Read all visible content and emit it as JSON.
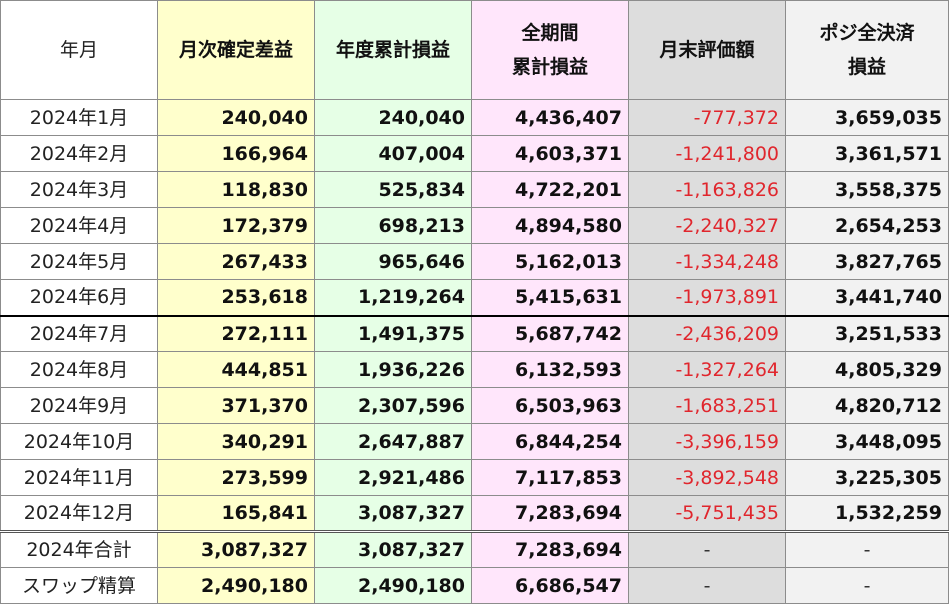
{
  "headers": {
    "month": "年月",
    "monthly_confirmed": "月次確定差益",
    "annual_cumulative": "年度累計損益",
    "period_cumulative_line1": "全期間",
    "period_cumulative_line2": "累計損益",
    "month_end_valuation": "月末評価額",
    "net_if_closed_line1": "ポジ全決済",
    "net_if_closed_line2": "損益"
  },
  "rows": [
    {
      "month": "2024年1月",
      "monthly": "240,040",
      "annual": "240,040",
      "total": "4,436,407",
      "valuation": "-777,372",
      "net": "3,659,035"
    },
    {
      "month": "2024年2月",
      "monthly": "166,964",
      "annual": "407,004",
      "total": "4,603,371",
      "valuation": "-1,241,800",
      "net": "3,361,571"
    },
    {
      "month": "2024年3月",
      "monthly": "118,830",
      "annual": "525,834",
      "total": "4,722,201",
      "valuation": "-1,163,826",
      "net": "3,558,375"
    },
    {
      "month": "2024年4月",
      "monthly": "172,379",
      "annual": "698,213",
      "total": "4,894,580",
      "valuation": "-2,240,327",
      "net": "2,654,253"
    },
    {
      "month": "2024年5月",
      "monthly": "267,433",
      "annual": "965,646",
      "total": "5,162,013",
      "valuation": "-1,334,248",
      "net": "3,827,765"
    },
    {
      "month": "2024年6月",
      "monthly": "253,618",
      "annual": "1,219,264",
      "total": "5,415,631",
      "valuation": "-1,973,891",
      "net": "3,441,740"
    },
    {
      "month": "2024年7月",
      "monthly": "272,111",
      "annual": "1,491,375",
      "total": "5,687,742",
      "valuation": "-2,436,209",
      "net": "3,251,533"
    },
    {
      "month": "2024年8月",
      "monthly": "444,851",
      "annual": "1,936,226",
      "total": "6,132,593",
      "valuation": "-1,327,264",
      "net": "4,805,329"
    },
    {
      "month": "2024年9月",
      "monthly": "371,370",
      "annual": "2,307,596",
      "total": "6,503,963",
      "valuation": "-1,683,251",
      "net": "4,820,712"
    },
    {
      "month": "2024年10月",
      "monthly": "340,291",
      "annual": "2,647,887",
      "total": "6,844,254",
      "valuation": "-3,396,159",
      "net": "3,448,095"
    },
    {
      "month": "2024年11月",
      "monthly": "273,599",
      "annual": "2,921,486",
      "total": "7,117,853",
      "valuation": "-3,892,548",
      "net": "3,225,305"
    },
    {
      "month": "2024年12月",
      "monthly": "165,841",
      "annual": "3,087,327",
      "total": "7,283,694",
      "valuation": "-5,751,435",
      "net": "1,532,259"
    }
  ],
  "summary": [
    {
      "label": "2024年合計",
      "monthly": "3,087,327",
      "annual": "3,087,327",
      "total": "7,283,694",
      "valuation": "-",
      "net": "-"
    },
    {
      "label": "スワップ精算",
      "monthly": "2,490,180",
      "annual": "2,490,180",
      "total": "6,686,547",
      "valuation": "-",
      "net": "-"
    }
  ],
  "colors": {
    "monthly_bg": "#ffffcc",
    "annual_bg": "#e6ffe6",
    "total_bg": "#ffe6fb",
    "valuation_bg": "#dddddd",
    "net_bg": "#f2f2f2",
    "negative_text": "#e0262d"
  }
}
